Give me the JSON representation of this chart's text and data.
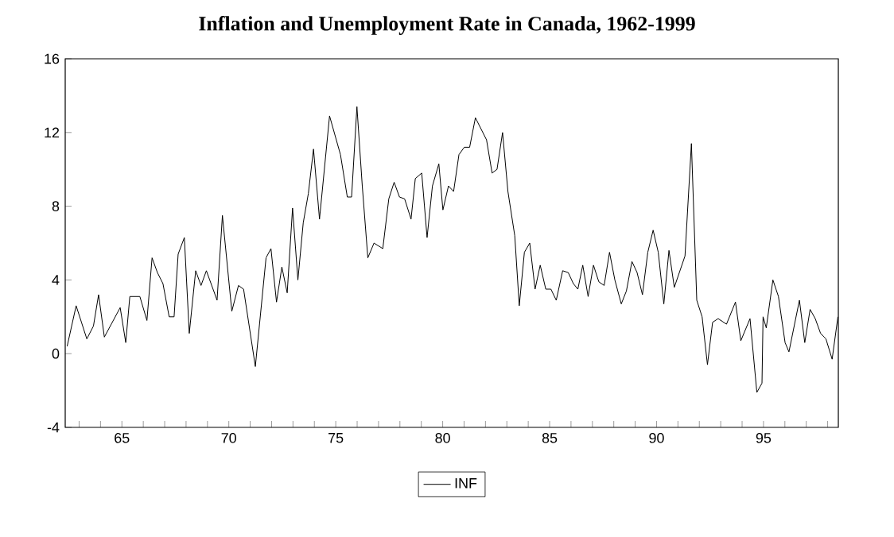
{
  "chart_data": {
    "type": "line",
    "title": "Inflation and Unemployment Rate in Canada, 1962-1999",
    "x": [
      1962.44,
      1962.86,
      1963.36,
      1963.67,
      1963.91,
      1964.18,
      1964.92,
      1965.18,
      1965.37,
      1965.84,
      1966.17,
      1966.41,
      1966.66,
      1966.92,
      1967.21,
      1967.44,
      1967.63,
      1967.92,
      1968.15,
      1968.45,
      1968.7,
      1968.95,
      1969.45,
      1969.7,
      1970.14,
      1970.45,
      1970.69,
      1971.24,
      1971.74,
      1971.97,
      1972.23,
      1972.48,
      1972.73,
      1972.98,
      1973.23,
      1973.48,
      1973.72,
      1973.96,
      1974.24,
      1974.71,
      1975.22,
      1975.54,
      1975.74,
      1975.99,
      1976.24,
      1976.5,
      1976.79,
      1977.2,
      1977.48,
      1977.73,
      1977.98,
      1978.22,
      1978.52,
      1978.72,
      1979.02,
      1979.27,
      1979.52,
      1979.82,
      1980.01,
      1980.27,
      1980.51,
      1980.76,
      1981.01,
      1981.26,
      1981.53,
      1982.05,
      1982.31,
      1982.54,
      1982.8,
      1983.05,
      1983.37,
      1983.58,
      1983.82,
      1984.07,
      1984.32,
      1984.56,
      1984.82,
      1985.06,
      1985.31,
      1985.61,
      1985.87,
      1986.11,
      1986.32,
      1986.55,
      1986.8,
      1987.05,
      1987.3,
      1987.55,
      1987.8,
      1988.05,
      1988.35,
      1988.59,
      1988.85,
      1989.09,
      1989.34,
      1989.59,
      1989.84,
      1990.08,
      1990.34,
      1990.58,
      1990.83,
      1991.33,
      1991.63,
      1991.88,
      1992.13,
      1992.38,
      1992.62,
      1992.88,
      1993.27,
      1993.69,
      1993.94,
      1994.37,
      1994.69,
      1994.93,
      1994.98,
      1995.13,
      1995.44,
      1995.7,
      1996.01,
      1996.19,
      1996.68,
      1996.93,
      1997.18,
      1997.42,
      1997.67,
      1997.92,
      1998.21,
      1998.48
    ],
    "series": [
      {
        "name": "INF",
        "color": "#000000",
        "values": [
          0.4,
          2.6,
          0.8,
          1.5,
          3.2,
          0.9,
          2.5,
          0.6,
          3.1,
          3.1,
          1.8,
          5.2,
          4.4,
          3.8,
          2.0,
          2.0,
          5.4,
          6.3,
          1.1,
          4.5,
          3.7,
          4.5,
          2.9,
          7.5,
          2.3,
          3.7,
          3.5,
          -0.7,
          5.2,
          5.7,
          2.8,
          4.7,
          3.3,
          7.9,
          4.0,
          7.1,
          8.7,
          11.1,
          7.3,
          12.9,
          10.8,
          8.5,
          8.5,
          13.4,
          9.1,
          5.2,
          6.0,
          5.7,
          8.4,
          9.3,
          8.5,
          8.4,
          7.3,
          9.5,
          9.8,
          6.3,
          9.1,
          10.3,
          7.8,
          9.1,
          8.8,
          10.8,
          11.2,
          11.2,
          12.8,
          11.6,
          9.8,
          10.0,
          12.0,
          8.8,
          6.4,
          2.6,
          5.5,
          6.0,
          3.5,
          4.8,
          3.5,
          3.5,
          2.9,
          4.5,
          4.4,
          3.8,
          3.5,
          4.8,
          3.1,
          4.8,
          3.9,
          3.7,
          5.5,
          4.0,
          2.7,
          3.4,
          5.0,
          4.4,
          3.2,
          5.5,
          6.7,
          5.5,
          2.7,
          5.6,
          3.6,
          5.3,
          11.4,
          2.9,
          2.0,
          -0.6,
          1.7,
          1.9,
          1.6,
          2.8,
          0.7,
          1.9,
          -2.1,
          -1.6,
          2.0,
          1.4,
          4.0,
          3.1,
          0.6,
          0.1,
          2.9,
          0.6,
          2.4,
          1.9,
          1.1,
          0.8,
          -0.3,
          2.0
        ]
      }
    ],
    "xlim": [
      1962.35,
      1998.5
    ],
    "ylim": [
      -4,
      16
    ],
    "yticks": [
      -4,
      0,
      4,
      8,
      12,
      16
    ],
    "xticks": [
      {
        "value": 1963,
        "label": null
      },
      {
        "value": 1964,
        "label": null
      },
      {
        "value": 1965,
        "label": "65"
      },
      {
        "value": 1966,
        "label": null
      },
      {
        "value": 1967,
        "label": null
      },
      {
        "value": 1968,
        "label": null
      },
      {
        "value": 1969,
        "label": null
      },
      {
        "value": 1970,
        "label": "70"
      },
      {
        "value": 1971,
        "label": null
      },
      {
        "value": 1972,
        "label": null
      },
      {
        "value": 1973,
        "label": null
      },
      {
        "value": 1974,
        "label": null
      },
      {
        "value": 1975,
        "label": "75"
      },
      {
        "value": 1976,
        "label": null
      },
      {
        "value": 1977,
        "label": null
      },
      {
        "value": 1978,
        "label": null
      },
      {
        "value": 1979,
        "label": null
      },
      {
        "value": 1980,
        "label": "80"
      },
      {
        "value": 1981,
        "label": null
      },
      {
        "value": 1982,
        "label": null
      },
      {
        "value": 1983,
        "label": null
      },
      {
        "value": 1984,
        "label": null
      },
      {
        "value": 1985,
        "label": "85"
      },
      {
        "value": 1986,
        "label": null
      },
      {
        "value": 1987,
        "label": null
      },
      {
        "value": 1988,
        "label": null
      },
      {
        "value": 1989,
        "label": null
      },
      {
        "value": 1990,
        "label": "90"
      },
      {
        "value": 1991,
        "label": null
      },
      {
        "value": 1992,
        "label": null
      },
      {
        "value": 1993,
        "label": null
      },
      {
        "value": 1994,
        "label": null
      },
      {
        "value": 1995,
        "label": "95"
      },
      {
        "value": 1996,
        "label": null
      },
      {
        "value": 1997,
        "label": null
      },
      {
        "value": 1998,
        "label": null
      }
    ],
    "legend": "bottom",
    "line_style": "solid",
    "grid": false
  }
}
